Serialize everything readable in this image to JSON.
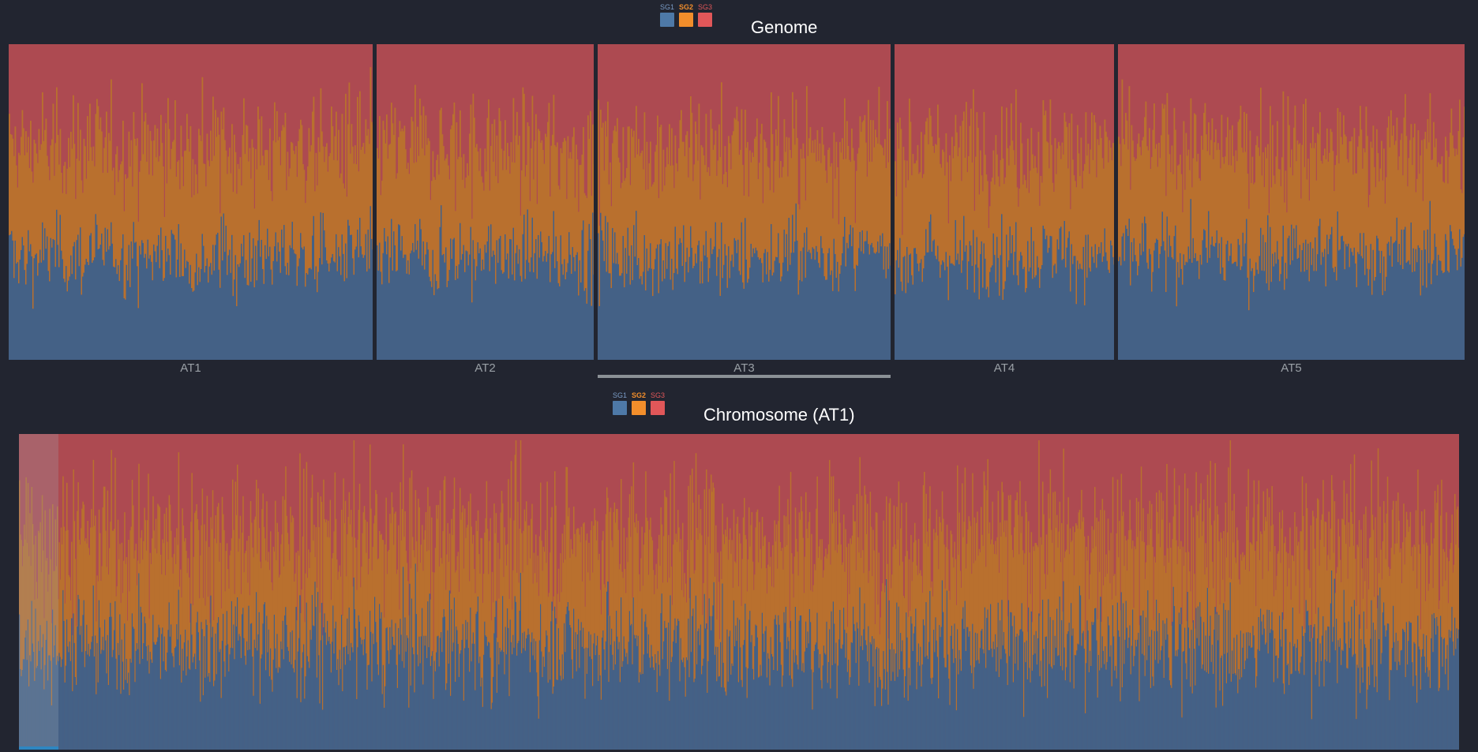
{
  "genome": {
    "title": "Genome",
    "legend": [
      {
        "label": "SG1",
        "color": "#4e79a7",
        "label_color": "#7a9cc6"
      },
      {
        "label": "SG2",
        "color": "#f28e2b",
        "label_color": "#f28e2b"
      },
      {
        "label": "SG3",
        "color": "#e15759",
        "label_color": "#e15759"
      }
    ],
    "chromosomes": [
      {
        "name": "AT1"
      },
      {
        "name": "AT2"
      },
      {
        "name": "AT3",
        "selected": true
      },
      {
        "name": "AT4"
      },
      {
        "name": "AT5"
      }
    ]
  },
  "chromosome_view": {
    "title": "Chromosome (AT1)",
    "legend": [
      {
        "label": "SG1",
        "color": "#4e79a7",
        "label_color": "#7a9cc6"
      },
      {
        "label": "SG2",
        "color": "#f28e2b",
        "label_color": "#f28e2b"
      },
      {
        "label": "SG3",
        "color": "#e15759",
        "label_color": "#e15759"
      }
    ]
  },
  "colors": {
    "background": "#222530",
    "sg1_fill": "#446186",
    "sg2_fill": "#b9702e",
    "sg3_fill": "#ad4a51",
    "selection": "#8b9196",
    "brush_edge": "#2e86c1"
  }
}
